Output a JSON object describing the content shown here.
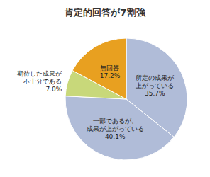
{
  "chart_data": {
    "type": "pie",
    "title": "肯定的回答が7割強",
    "categories": [
      "所定の成果が\n上がっている",
      "一部であるが、\n成果が上がっている",
      "期待した成果が\n不十分である",
      "無回答"
    ],
    "values": [
      35.7,
      40.1,
      7.0,
      17.2
    ],
    "value_labels": [
      "35.7%",
      "40.1%",
      "7.0%",
      "17.2%"
    ],
    "colors": [
      "#b0bcd8",
      "#b0bcd8",
      "#c8d87a",
      "#e8a020"
    ],
    "data_labels": true
  }
}
